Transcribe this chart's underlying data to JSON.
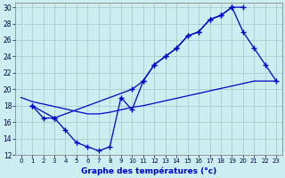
{
  "xlabel": "Graphe des températures (°c)",
  "bg_color": "#cceef0",
  "grid_color": "#aacccc",
  "line_color": "#0000cc",
  "xlim": [
    -0.5,
    23.5
  ],
  "ylim": [
    12,
    30.5
  ],
  "xticks": [
    0,
    1,
    2,
    3,
    4,
    5,
    6,
    7,
    8,
    9,
    10,
    11,
    12,
    13,
    14,
    15,
    16,
    17,
    18,
    19,
    20,
    21,
    22,
    23
  ],
  "yticks": [
    12,
    14,
    16,
    18,
    20,
    22,
    24,
    26,
    28,
    30
  ],
  "line1_x": [
    1,
    2,
    3,
    10,
    11,
    12,
    13,
    14,
    15,
    16,
    17,
    18,
    19,
    20
  ],
  "line1_y": [
    18,
    16.5,
    16.5,
    20,
    21,
    23,
    24,
    25,
    26.5,
    27,
    28.5,
    29,
    30,
    30
  ],
  "line2_x": [
    1,
    3,
    4,
    5,
    6,
    7,
    8,
    9,
    10,
    11,
    12,
    13,
    14,
    15,
    16,
    17,
    18,
    19,
    20,
    21,
    22,
    23
  ],
  "line2_y": [
    18,
    16.5,
    15,
    13.5,
    13,
    12.5,
    13,
    19,
    17.5,
    21,
    23,
    24,
    25,
    26.5,
    27,
    28.5,
    29,
    30,
    27,
    25,
    23,
    21
  ],
  "line3_x": [
    0,
    1,
    2,
    3,
    4,
    5,
    6,
    7,
    8,
    9,
    10,
    11,
    12,
    13,
    14,
    15,
    16,
    17,
    18,
    19,
    20,
    21,
    22,
    23
  ],
  "line3_y": [
    19,
    18.5,
    18.2,
    17.9,
    17.6,
    17.3,
    17.0,
    17.0,
    17.2,
    17.5,
    17.8,
    18.0,
    18.3,
    18.6,
    18.9,
    19.2,
    19.5,
    19.8,
    20.1,
    20.4,
    20.7,
    21.0,
    21.0,
    21.0
  ]
}
